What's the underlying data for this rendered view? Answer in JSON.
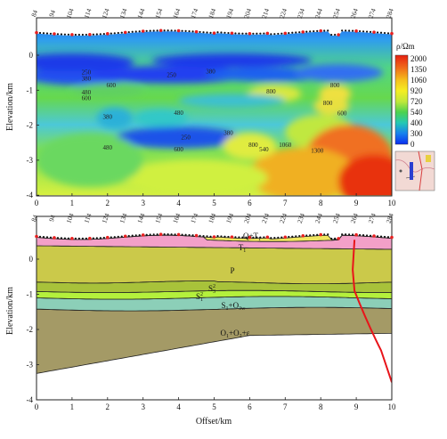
{
  "figure": {
    "stations": [
      "84",
      "94",
      "104",
      "114",
      "124",
      "134",
      "144",
      "154",
      "164",
      "174",
      "184",
      "194",
      "204",
      "214",
      "224",
      "234",
      "244",
      "254",
      "264",
      "274",
      "284"
    ],
    "x_axis": {
      "ticks": [
        "0",
        "1",
        "2",
        "3",
        "4",
        "5",
        "6",
        "7",
        "8",
        "9",
        "10"
      ],
      "label": "Offset/km",
      "range": [
        0,
        10
      ]
    },
    "y_axis": {
      "ticks": [
        "0",
        "-1",
        "-2",
        "-3",
        "-4"
      ],
      "label": "Elevation/km",
      "range": [
        -4,
        0.7
      ]
    },
    "top_panel": {
      "contour_labels": [
        {
          "x": 1.4,
          "y": -0.55,
          "text": "250"
        },
        {
          "x": 1.4,
          "y": -0.72,
          "text": "380"
        },
        {
          "x": 2.1,
          "y": -0.92,
          "text": "600"
        },
        {
          "x": 1.4,
          "y": -1.12,
          "text": "480"
        },
        {
          "x": 1.4,
          "y": -1.28,
          "text": "600"
        },
        {
          "x": 3.8,
          "y": -0.62,
          "text": "250"
        },
        {
          "x": 4.9,
          "y": -0.52,
          "text": "380"
        },
        {
          "x": 4.0,
          "y": -1.7,
          "text": "480"
        },
        {
          "x": 2.0,
          "y": -1.82,
          "text": "380"
        },
        {
          "x": 4.2,
          "y": -2.4,
          "text": "250"
        },
        {
          "x": 5.4,
          "y": -2.28,
          "text": "380"
        },
        {
          "x": 4.0,
          "y": -2.75,
          "text": "600"
        },
        {
          "x": 2.0,
          "y": -2.7,
          "text": "480"
        },
        {
          "x": 6.6,
          "y": -1.1,
          "text": "800"
        },
        {
          "x": 8.4,
          "y": -0.92,
          "text": "800"
        },
        {
          "x": 8.2,
          "y": -1.42,
          "text": "800"
        },
        {
          "x": 8.6,
          "y": -1.72,
          "text": "600"
        },
        {
          "x": 6.1,
          "y": -2.62,
          "text": "800"
        },
        {
          "x": 6.4,
          "y": -2.75,
          "text": "540"
        },
        {
          "x": 7.0,
          "y": -2.62,
          "text": "1060"
        },
        {
          "x": 7.9,
          "y": -2.78,
          "text": "1300"
        }
      ]
    },
    "colorbar": {
      "title": "ρ/Ωm",
      "labels": [
        "2000",
        "1350",
        "1060",
        "920",
        "720",
        "540",
        "400",
        "300",
        "0"
      ],
      "colors": [
        "#e62010",
        "#f06a1a",
        "#f5c01c",
        "#f5ee22",
        "#c0e83a",
        "#4cd24e",
        "#24c8b4",
        "#1880ee",
        "#0a2ef0"
      ]
    },
    "bottom_panel": {
      "layers": [
        {
          "name": "Q+T",
          "color": "#f0e660"
        },
        {
          "name": "T",
          "sub": "1",
          "color": "#f3a0c8"
        },
        {
          "name": "P",
          "color": "#cbc94a"
        },
        {
          "name": "S",
          "sub": "3",
          "sup": "2",
          "color": "#a8c23a"
        },
        {
          "name": "S",
          "sub": "1",
          "sup": "2",
          "color": "#b4f03c"
        },
        {
          "name": "S",
          "sub": "1",
          "extra": "+O",
          "extra_sub": "3w",
          "color": "#8ccfb8"
        },
        {
          "name": "O",
          "sub": "1",
          "extra": "+O",
          "extra_sub": "2",
          "extra2": "+ε",
          "color": "#a49a66"
        }
      ],
      "q_label": "Q+T",
      "q_sub": "1",
      "t_label": "T",
      "t_sub": "1",
      "p_label": "P",
      "s2_main": "S",
      "s2_sub": "3",
      "s2_sup": "2",
      "s1_main": "S",
      "s1_sub": "1",
      "s1_sup": "2",
      "so_main": "S",
      "so_sub": "1",
      "so_mid": "+O",
      "so_sub2": "3w",
      "oo_main": "O",
      "oo_sub": "1",
      "oo_mid": "+O",
      "oo_sub2": "2",
      "oo_end": "+ε"
    }
  }
}
